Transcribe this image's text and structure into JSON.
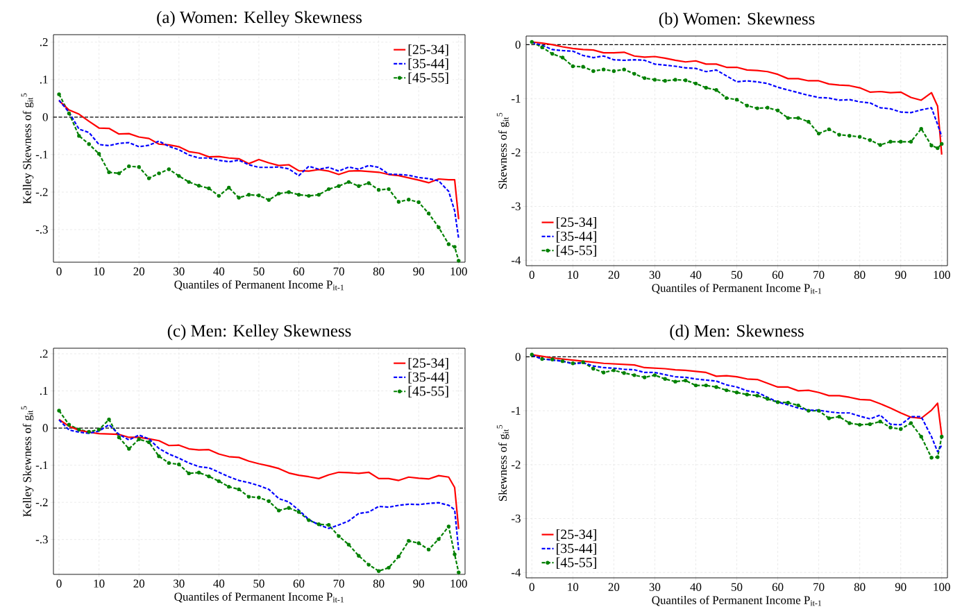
{
  "chart_data": [
    {
      "type": "line",
      "title": "(a) Women: Kelley Skewness",
      "xlabel": "Quantiles of Permanent Income P$_{it-1}$",
      "ylabel": "Kelley Skewness of g$_{it}$$^{5}$",
      "x": [
        0,
        2.5,
        5,
        7.5,
        10,
        12.5,
        15,
        17.5,
        20,
        22.5,
        25,
        27.5,
        30,
        32.5,
        35,
        37.5,
        40,
        42.5,
        45,
        47.5,
        50,
        52.5,
        55,
        57.5,
        60,
        62.5,
        65,
        67.5,
        70,
        72.5,
        75,
        77.5,
        80,
        82.5,
        85,
        87.5,
        90,
        92.5,
        95,
        97.5,
        99,
        100
      ],
      "xlim": [
        -1.4,
        101.6
      ],
      "xticks": [
        0,
        10,
        20,
        30,
        40,
        50,
        60,
        70,
        80,
        90,
        100
      ],
      "ylim": [
        -0.387,
        0.22
      ],
      "yticks": [
        {
          "value": -0.3,
          "label": "-.3"
        },
        {
          "value": -0.2,
          "label": "-.2"
        },
        {
          "value": -0.1,
          "label": "-.1"
        },
        0,
        {
          "value": 0.1,
          "label": ".1"
        },
        {
          "value": 0.2,
          "label": ".2"
        }
      ],
      "grid": true,
      "legend": "top right",
      "ref_lines": [
        {
          "axis": "y",
          "value": 0,
          "color": "#000000",
          "line_style": "dashed"
        }
      ],
      "series": [
        {
          "name": "[25-34]",
          "color": "#ff0000",
          "line_style": "solid",
          "values": [
            0.044,
            0.019,
            0.008,
            -0.011,
            -0.029,
            -0.03,
            -0.045,
            -0.044,
            -0.053,
            -0.057,
            -0.072,
            -0.074,
            -0.079,
            -0.092,
            -0.096,
            -0.106,
            -0.105,
            -0.109,
            -0.111,
            -0.124,
            -0.113,
            -0.122,
            -0.129,
            -0.127,
            -0.143,
            -0.144,
            -0.14,
            -0.144,
            -0.153,
            -0.144,
            -0.143,
            -0.145,
            -0.147,
            -0.153,
            -0.156,
            -0.162,
            -0.168,
            -0.175,
            -0.165,
            -0.167,
            -0.167,
            -0.272
          ]
        },
        {
          "name": "[35-44]",
          "color": "#0000ff",
          "line_style": "dashed",
          "values": [
            0.045,
            0.013,
            -0.032,
            -0.041,
            -0.073,
            -0.076,
            -0.07,
            -0.068,
            -0.079,
            -0.075,
            -0.064,
            -0.078,
            -0.087,
            -0.101,
            -0.109,
            -0.109,
            -0.115,
            -0.119,
            -0.115,
            -0.127,
            -0.134,
            -0.134,
            -0.133,
            -0.138,
            -0.156,
            -0.131,
            -0.139,
            -0.134,
            -0.144,
            -0.133,
            -0.139,
            -0.129,
            -0.134,
            -0.152,
            -0.153,
            -0.155,
            -0.161,
            -0.164,
            -0.17,
            -0.198,
            -0.25,
            -0.324
          ]
        },
        {
          "name": "[45-55]",
          "color": "#008000",
          "line_style": "dashed",
          "marker": "circle",
          "values": [
            0.061,
            0.01,
            -0.05,
            -0.072,
            -0.098,
            -0.147,
            -0.15,
            -0.131,
            -0.133,
            -0.163,
            -0.15,
            -0.139,
            -0.157,
            -0.173,
            -0.183,
            -0.19,
            -0.21,
            -0.188,
            -0.215,
            -0.207,
            -0.209,
            -0.221,
            -0.204,
            -0.2,
            -0.207,
            -0.21,
            -0.207,
            -0.192,
            -0.184,
            -0.173,
            -0.184,
            -0.176,
            -0.194,
            -0.192,
            -0.226,
            -0.22,
            -0.227,
            -0.257,
            -0.294,
            -0.339,
            -0.346,
            -0.383
          ]
        }
      ]
    },
    {
      "type": "line",
      "title": "(b) Women: Skewness",
      "xlabel": "Quantiles of Permanent Income P$_{it-1}$",
      "ylabel": "Skewness of g$_{it}$$^{5}$",
      "x": [
        0,
        2.5,
        5,
        7.5,
        10,
        12.5,
        15,
        17.5,
        20,
        22.5,
        25,
        27.5,
        30,
        32.5,
        35,
        37.5,
        40,
        42.5,
        45,
        47.5,
        50,
        52.5,
        55,
        57.5,
        60,
        62.5,
        65,
        67.5,
        70,
        72.5,
        75,
        77.5,
        80,
        82.5,
        85,
        87.5,
        90,
        92.5,
        95,
        97.5,
        99,
        100
      ],
      "xlim": [
        -1.4,
        101.4
      ],
      "xticks": [
        0,
        10,
        20,
        30,
        40,
        50,
        60,
        70,
        80,
        90,
        100
      ],
      "ylim": [
        -4.1,
        0.16
      ],
      "yticks": [
        -4,
        -3,
        -2,
        -1,
        0
      ],
      "grid": true,
      "legend": "bottom left",
      "ref_lines": [
        {
          "axis": "y",
          "value": 0,
          "color": "#000000",
          "line_style": "dashed"
        }
      ],
      "series": [
        {
          "name": "[25-34]",
          "color": "#ff0000",
          "line_style": "solid",
          "values": [
            0.05,
            0.03,
            0.0,
            -0.04,
            -0.07,
            -0.09,
            -0.1,
            -0.15,
            -0.15,
            -0.14,
            -0.21,
            -0.23,
            -0.22,
            -0.25,
            -0.29,
            -0.32,
            -0.3,
            -0.36,
            -0.36,
            -0.42,
            -0.42,
            -0.47,
            -0.48,
            -0.5,
            -0.55,
            -0.63,
            -0.63,
            -0.67,
            -0.67,
            -0.73,
            -0.75,
            -0.76,
            -0.8,
            -0.88,
            -0.87,
            -0.89,
            -0.88,
            -0.98,
            -1.03,
            -0.89,
            -1.14,
            -2.04
          ]
        },
        {
          "name": "[35-44]",
          "color": "#0000ff",
          "line_style": "dashed",
          "values": [
            0.04,
            -0.01,
            -0.09,
            -0.11,
            -0.12,
            -0.2,
            -0.24,
            -0.21,
            -0.28,
            -0.29,
            -0.28,
            -0.29,
            -0.36,
            -0.38,
            -0.4,
            -0.43,
            -0.44,
            -0.5,
            -0.47,
            -0.58,
            -0.69,
            -0.67,
            -0.69,
            -0.72,
            -0.79,
            -0.84,
            -0.89,
            -0.94,
            -0.98,
            -0.99,
            -1.03,
            -1.02,
            -1.06,
            -1.08,
            -1.17,
            -1.19,
            -1.25,
            -1.26,
            -1.21,
            -1.17,
            -1.48,
            -1.7
          ]
        },
        {
          "name": "[45-55]",
          "color": "#008000",
          "line_style": "dashed",
          "marker": "circle",
          "values": [
            0.05,
            -0.05,
            -0.17,
            -0.24,
            -0.4,
            -0.41,
            -0.49,
            -0.46,
            -0.49,
            -0.46,
            -0.54,
            -0.62,
            -0.65,
            -0.67,
            -0.65,
            -0.66,
            -0.72,
            -0.8,
            -0.84,
            -0.99,
            -1.02,
            -1.13,
            -1.18,
            -1.17,
            -1.22,
            -1.36,
            -1.36,
            -1.43,
            -1.65,
            -1.57,
            -1.67,
            -1.69,
            -1.71,
            -1.77,
            -1.86,
            -1.8,
            -1.8,
            -1.8,
            -1.56,
            -1.87,
            -1.92,
            -1.84
          ]
        }
      ]
    },
    {
      "type": "line",
      "title": "(c) Men: Kelley Skewness",
      "xlabel": "Quantiles of Permanent Income P$_{it-1}$",
      "ylabel": "Kelley Skewness of g$_{it}$$^{5}$",
      "x": [
        0,
        2.5,
        5,
        7.5,
        10,
        12.5,
        15,
        17.5,
        20,
        22.5,
        25,
        27.5,
        30,
        32.5,
        35,
        37.5,
        40,
        42.5,
        45,
        47.5,
        50,
        52.5,
        55,
        57.5,
        60,
        62.5,
        65,
        67.5,
        70,
        72.5,
        75,
        77.5,
        80,
        82.5,
        85,
        87.5,
        90,
        92.5,
        95,
        97.5,
        99,
        100
      ],
      "xlim": [
        -1.4,
        101.6
      ],
      "xticks": [
        0,
        10,
        20,
        30,
        40,
        50,
        60,
        70,
        80,
        90,
        100
      ],
      "ylim": [
        -0.394,
        0.215
      ],
      "yticks": [
        {
          "value": -0.3,
          "label": "-.3"
        },
        {
          "value": -0.2,
          "label": "-.2"
        },
        {
          "value": -0.1,
          "label": "-.1"
        },
        0,
        {
          "value": 0.1,
          "label": ".1"
        },
        {
          "value": 0.2,
          "label": ".2"
        }
      ],
      "grid": true,
      "legend": "top right",
      "ref_lines": [
        {
          "axis": "y",
          "value": 0,
          "color": "#000000",
          "line_style": "dashed"
        }
      ],
      "series": [
        {
          "name": "[25-34]",
          "color": "#ff0000",
          "line_style": "solid",
          "values": [
            0.023,
            0.005,
            -0.006,
            -0.011,
            -0.015,
            -0.016,
            -0.017,
            -0.025,
            -0.025,
            -0.029,
            -0.034,
            -0.047,
            -0.046,
            -0.056,
            -0.059,
            -0.058,
            -0.07,
            -0.077,
            -0.079,
            -0.089,
            -0.096,
            -0.102,
            -0.109,
            -0.121,
            -0.127,
            -0.131,
            -0.136,
            -0.126,
            -0.119,
            -0.12,
            -0.122,
            -0.119,
            -0.136,
            -0.136,
            -0.141,
            -0.132,
            -0.135,
            -0.137,
            -0.128,
            -0.132,
            -0.16,
            -0.272
          ]
        },
        {
          "name": "[35-44]",
          "color": "#0000ff",
          "line_style": "dashed",
          "values": [
            0.022,
            -0.005,
            -0.011,
            -0.014,
            -0.008,
            0.009,
            -0.017,
            -0.032,
            -0.019,
            -0.029,
            -0.055,
            -0.07,
            -0.081,
            -0.094,
            -0.104,
            -0.107,
            -0.119,
            -0.131,
            -0.141,
            -0.147,
            -0.155,
            -0.165,
            -0.19,
            -0.199,
            -0.221,
            -0.246,
            -0.261,
            -0.27,
            -0.261,
            -0.25,
            -0.23,
            -0.226,
            -0.211,
            -0.213,
            -0.208,
            -0.205,
            -0.206,
            -0.203,
            -0.201,
            -0.208,
            -0.22,
            -0.329
          ]
        },
        {
          "name": "[45-55]",
          "color": "#008000",
          "line_style": "dashed",
          "marker": "circle",
          "values": [
            0.047,
            0.009,
            -0.004,
            -0.01,
            -0.004,
            0.023,
            -0.025,
            -0.056,
            -0.03,
            -0.038,
            -0.076,
            -0.094,
            -0.098,
            -0.122,
            -0.12,
            -0.13,
            -0.143,
            -0.158,
            -0.165,
            -0.185,
            -0.187,
            -0.197,
            -0.222,
            -0.215,
            -0.226,
            -0.248,
            -0.259,
            -0.261,
            -0.291,
            -0.314,
            -0.344,
            -0.368,
            -0.385,
            -0.376,
            -0.346,
            -0.304,
            -0.31,
            -0.327,
            -0.299,
            -0.265,
            -0.34,
            -0.389
          ]
        }
      ]
    },
    {
      "type": "line",
      "title": "(d) Men: Skewness",
      "xlabel": "Quantiles of Permanent Income P$_{it-1}$",
      "ylabel": "Skewness of g$_{it}$$^{5}$",
      "x": [
        0,
        2.5,
        5,
        7.5,
        10,
        12.5,
        15,
        17.5,
        20,
        22.5,
        25,
        27.5,
        30,
        32.5,
        35,
        37.5,
        40,
        42.5,
        45,
        47.5,
        50,
        52.5,
        55,
        57.5,
        60,
        62.5,
        65,
        67.5,
        70,
        72.5,
        75,
        77.5,
        80,
        82.5,
        85,
        87.5,
        90,
        92.5,
        95,
        97.5,
        99,
        100
      ],
      "xlim": [
        -1.4,
        101.4
      ],
      "xticks": [
        0,
        10,
        20,
        30,
        40,
        50,
        60,
        70,
        80,
        90,
        100
      ],
      "ylim": [
        -4.1,
        0.16
      ],
      "yticks": [
        -4,
        -3,
        -2,
        -1,
        0
      ],
      "grid": true,
      "legend": "bottom left",
      "ref_lines": [
        {
          "axis": "y",
          "value": 0,
          "color": "#000000",
          "line_style": "dashed"
        }
      ],
      "series": [
        {
          "name": "[25-34]",
          "color": "#ff0000",
          "line_style": "solid",
          "values": [
            0.04,
            0.01,
            -0.02,
            -0.04,
            -0.06,
            -0.08,
            -0.1,
            -0.12,
            -0.13,
            -0.14,
            -0.15,
            -0.2,
            -0.21,
            -0.22,
            -0.24,
            -0.25,
            -0.27,
            -0.29,
            -0.36,
            -0.35,
            -0.37,
            -0.41,
            -0.42,
            -0.49,
            -0.56,
            -0.56,
            -0.63,
            -0.62,
            -0.66,
            -0.72,
            -0.72,
            -0.75,
            -0.79,
            -0.8,
            -0.87,
            -0.95,
            -1.04,
            -1.12,
            -1.14,
            -0.99,
            -0.86,
            -1.46
          ]
        },
        {
          "name": "[35-44]",
          "color": "#0000ff",
          "line_style": "dashed",
          "values": [
            0.03,
            -0.04,
            -0.06,
            -0.08,
            -0.13,
            -0.11,
            -0.17,
            -0.2,
            -0.21,
            -0.23,
            -0.24,
            -0.29,
            -0.29,
            -0.33,
            -0.37,
            -0.38,
            -0.41,
            -0.43,
            -0.45,
            -0.52,
            -0.56,
            -0.63,
            -0.66,
            -0.75,
            -0.84,
            -0.89,
            -0.95,
            -0.99,
            -0.99,
            -1.02,
            -1.04,
            -1.04,
            -1.1,
            -1.15,
            -1.08,
            -1.25,
            -1.26,
            -1.11,
            -1.11,
            -1.48,
            -1.76,
            -1.64
          ]
        },
        {
          "name": "[45-55]",
          "color": "#008000",
          "line_style": "dashed",
          "marker": "circle",
          "values": [
            0.04,
            -0.04,
            -0.05,
            -0.08,
            -0.12,
            -0.1,
            -0.22,
            -0.29,
            -0.25,
            -0.3,
            -0.34,
            -0.38,
            -0.34,
            -0.41,
            -0.46,
            -0.44,
            -0.53,
            -0.53,
            -0.56,
            -0.62,
            -0.66,
            -0.7,
            -0.72,
            -0.78,
            -0.84,
            -0.85,
            -0.9,
            -1.0,
            -1.0,
            -1.14,
            -1.11,
            -1.23,
            -1.26,
            -1.25,
            -1.2,
            -1.31,
            -1.34,
            -1.23,
            -1.48,
            -1.87,
            -1.86,
            -1.48
          ]
        }
      ]
    }
  ]
}
